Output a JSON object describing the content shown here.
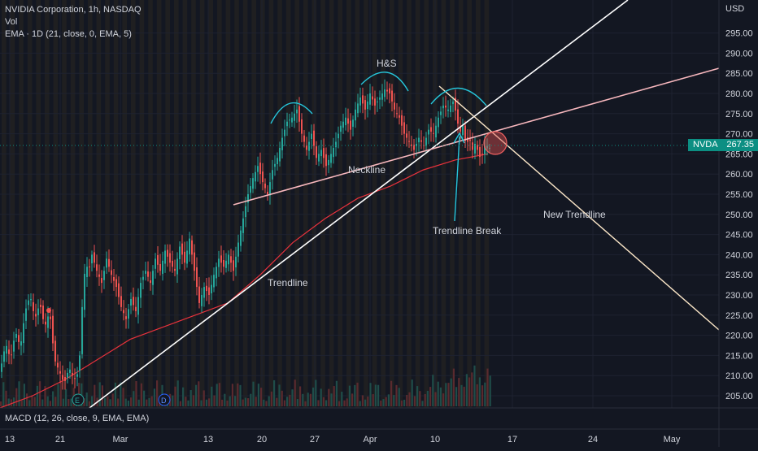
{
  "legend": {
    "title": "NVIDIA Corporation, 1h, NASDAQ",
    "vol": "Vol",
    "ema": "EMA · 1D (21, close, 0, EMA, 5)"
  },
  "macd": {
    "label": "MACD (12, 26, close, 9, EMA, EMA)"
  },
  "price_axis": {
    "currency": "USD"
  },
  "current_price": {
    "symbol": "NVDA",
    "value": "267.35"
  },
  "colors": {
    "background": "#131722",
    "up": "#26a69a",
    "down": "#ef5350",
    "trendline": "#ffffff",
    "neckline": "#f7b7bd",
    "new_trendline": "#fce7c8",
    "ema": "#e8323c",
    "arc": "#26c6da",
    "badge": "#0c8f83"
  },
  "annotations": {
    "hs": "H&S",
    "neckline": "Neckline",
    "trendline": "Trendline",
    "trendline_break": "Trendline Break",
    "new_trendline": "New Trendline"
  },
  "events": {
    "earnings": "E",
    "dividend": "D"
  },
  "chart_data": {
    "type": "candlestick",
    "title": "NVIDIA Corporation, 1h, NASDAQ",
    "symbol": "NVDA",
    "last_price": 267.35,
    "y_ticks": [
      205,
      210,
      215,
      220,
      225,
      230,
      235,
      240,
      245,
      250,
      255,
      260,
      265,
      270,
      275,
      280,
      285,
      290,
      295
    ],
    "y_tick_labels": [
      "205.00",
      "210.00",
      "215.00",
      "220.00",
      "225.00",
      "230.00",
      "235.00",
      "240.00",
      "245.00",
      "250.00",
      "255.00",
      "260.00",
      "265.00",
      "270.00",
      "275.00",
      "280.00",
      "285.00",
      "290.00",
      "295.00"
    ],
    "ylim": [
      202.5,
      299
    ],
    "x_tick_labels": [
      "13",
      "21",
      "Mar",
      "13",
      "20",
      "27",
      "Apr",
      "10",
      "17",
      "24",
      "May"
    ],
    "series_path": [
      [
        0,
        212
      ],
      [
        6,
        218
      ],
      [
        12,
        214
      ],
      [
        18,
        221
      ],
      [
        24,
        217
      ],
      [
        30,
        226
      ],
      [
        36,
        230
      ],
      [
        42,
        224
      ],
      [
        48,
        228
      ],
      [
        54,
        222
      ],
      [
        60,
        226
      ],
      [
        66,
        214
      ],
      [
        72,
        211
      ],
      [
        78,
        208
      ],
      [
        84,
        212
      ],
      [
        90,
        209
      ],
      [
        96,
        211
      ],
      [
        100,
        227
      ],
      [
        104,
        238
      ],
      [
        108,
        236
      ],
      [
        112,
        240
      ],
      [
        118,
        236
      ],
      [
        124,
        233
      ],
      [
        130,
        239
      ],
      [
        136,
        235
      ],
      [
        142,
        232
      ],
      [
        148,
        227
      ],
      [
        154,
        224
      ],
      [
        160,
        229
      ],
      [
        166,
        226
      ],
      [
        172,
        233
      ],
      [
        178,
        236
      ],
      [
        184,
        233
      ],
      [
        190,
        239
      ],
      [
        196,
        236
      ],
      [
        202,
        241
      ],
      [
        208,
        238
      ],
      [
        214,
        236
      ],
      [
        220,
        242
      ],
      [
        226,
        238
      ],
      [
        232,
        244
      ],
      [
        238,
        236
      ],
      [
        244,
        228
      ],
      [
        250,
        232
      ],
      [
        256,
        230
      ],
      [
        262,
        235
      ],
      [
        268,
        239
      ],
      [
        274,
        237
      ],
      [
        280,
        240
      ],
      [
        286,
        236
      ],
      [
        292,
        243
      ],
      [
        298,
        249
      ],
      [
        304,
        255
      ],
      [
        310,
        259
      ],
      [
        316,
        262
      ],
      [
        322,
        258
      ],
      [
        328,
        255
      ],
      [
        334,
        261
      ],
      [
        340,
        264
      ],
      [
        346,
        269
      ],
      [
        352,
        273
      ],
      [
        358,
        274
      ],
      [
        364,
        276
      ],
      [
        370,
        270
      ],
      [
        376,
        266
      ],
      [
        382,
        270
      ],
      [
        388,
        264
      ],
      [
        394,
        266
      ],
      [
        400,
        262
      ],
      [
        406,
        265
      ],
      [
        412,
        268
      ],
      [
        418,
        272
      ],
      [
        424,
        274
      ],
      [
        430,
        271
      ],
      [
        436,
        276
      ],
      [
        442,
        279
      ],
      [
        448,
        276
      ],
      [
        454,
        280
      ],
      [
        460,
        277
      ],
      [
        466,
        279
      ],
      [
        472,
        281
      ],
      [
        478,
        280
      ],
      [
        484,
        276
      ],
      [
        490,
        274
      ],
      [
        496,
        270
      ],
      [
        502,
        268
      ],
      [
        508,
        266
      ],
      [
        514,
        269
      ],
      [
        520,
        267
      ],
      [
        526,
        271
      ],
      [
        532,
        270
      ],
      [
        538,
        274
      ],
      [
        544,
        277
      ],
      [
        550,
        276
      ],
      [
        556,
        278
      ],
      [
        560,
        275
      ],
      [
        564,
        270
      ],
      [
        568,
        272
      ],
      [
        572,
        267
      ],
      [
        576,
        269
      ],
      [
        580,
        266
      ],
      [
        584,
        268
      ],
      [
        588,
        264
      ],
      [
        592,
        265
      ],
      [
        596,
        268
      ],
      [
        600,
        266
      ],
      [
        604,
        268
      ]
    ],
    "ema_series": [
      [
        0,
        202
      ],
      [
        40,
        205
      ],
      [
        80,
        209
      ],
      [
        120,
        214
      ],
      [
        160,
        219
      ],
      [
        200,
        222
      ],
      [
        240,
        225
      ],
      [
        280,
        228
      ],
      [
        320,
        235
      ],
      [
        360,
        243
      ],
      [
        400,
        249
      ],
      [
        440,
        254
      ],
      [
        480,
        257
      ],
      [
        520,
        261
      ],
      [
        560,
        263.5
      ],
      [
        600,
        265
      ]
    ],
    "volume_max": 40,
    "drawings": {
      "trendline": "rising line from the 21 low through the Mar/Apr lows to the top-right",
      "neckline": "rising line under the head-and-shoulders",
      "new_trendline": "falling line from the right shoulder to the lower right"
    }
  }
}
